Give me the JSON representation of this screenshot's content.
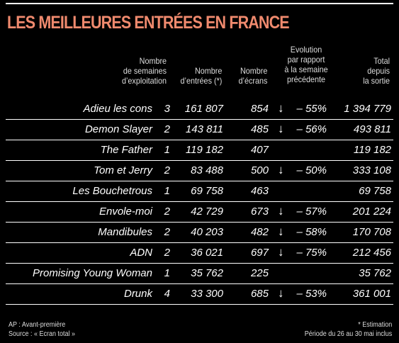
{
  "title": "LES MEILLEURES ENTRÉES EN FRANCE",
  "headers": {
    "weeks": "Nombre\nde semaines\nd’exploitation",
    "entries": "Nombre\nd’entrées (*)",
    "screens": "Nombre\nd’écrans",
    "evolution": "Evolution\npar rapport\nà la semaine\nprécédente",
    "total": "Total\ndepuis\nla sortie"
  },
  "rows": [
    {
      "title": "Adieu les cons",
      "weeks": "3",
      "entries": "161 807",
      "screens": "854",
      "arrow": "down-arrow",
      "evolution": "– 55%",
      "total": "1 394 779"
    },
    {
      "title": "Demon Slayer",
      "weeks": "2",
      "entries": "143 811",
      "screens": "485",
      "arrow": "down-arrow",
      "evolution": "– 56%",
      "total": "493 811"
    },
    {
      "title": "The Father",
      "weeks": "1",
      "entries": "119 182",
      "screens": "407",
      "arrow": "",
      "evolution": "",
      "total": "119 182"
    },
    {
      "title": "Tom et Jerry",
      "weeks": "2",
      "entries": "83 488",
      "screens": "500",
      "arrow": "down-arrow",
      "evolution": "– 50%",
      "total": "333 108"
    },
    {
      "title": "Les Bouchetrous",
      "weeks": "1",
      "entries": "69 758",
      "screens": "463",
      "arrow": "",
      "evolution": "",
      "total": "69 758"
    },
    {
      "title": "Envole-moi",
      "weeks": "2",
      "entries": "42 729",
      "screens": "673",
      "arrow": "down-arrow",
      "evolution": "– 57%",
      "total": "201 224"
    },
    {
      "title": "Mandibules",
      "weeks": "2",
      "entries": "40 203",
      "screens": "482",
      "arrow": "down-arrow",
      "evolution": "– 58%",
      "total": "170 708"
    },
    {
      "title": "ADN",
      "weeks": "2",
      "entries": "36 021",
      "screens": "697",
      "arrow": "down-arrow",
      "evolution": "– 75%",
      "total": "212 456"
    },
    {
      "title": "Promising Young Woman",
      "weeks": "1",
      "entries": "35 762",
      "screens": "225",
      "arrow": "",
      "evolution": "",
      "total": "35 762"
    },
    {
      "title": "Drunk",
      "weeks": "4",
      "entries": "33 300",
      "screens": "685",
      "arrow": "down-arrow",
      "evolution": "– 53%",
      "total": "361 001"
    }
  ],
  "footer": {
    "left_line1": "AP : Avant-première",
    "left_line2": "Source : « Ecran total »",
    "right_line1": "* Estimation",
    "right_line2": "Période du 26 au 30 mai inclus"
  },
  "colors": {
    "title": "#f08a6e",
    "background": "#000000",
    "text": "#ffffff"
  }
}
